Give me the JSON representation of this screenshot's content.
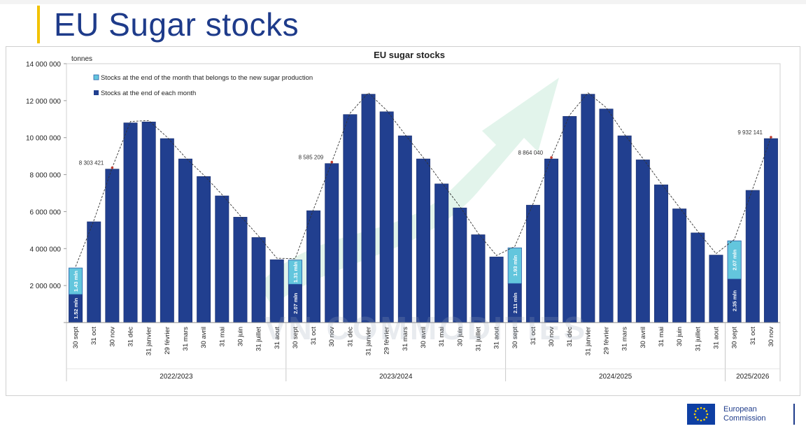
{
  "page": {
    "title": "EU Sugar stocks"
  },
  "footer": {
    "logo_line1": "European",
    "logo_line2": "Commission"
  },
  "watermark": "VN COMMODITIES",
  "colors": {
    "bar_dark": "#213f8f",
    "bar_light": "#63c6dd",
    "title": "#1e3b8a",
    "trend_arrow": "#bfe6d2"
  },
  "chart_data": {
    "type": "bar",
    "title": "EU sugar stocks",
    "ylabel": "tonnes",
    "ylim": [
      0,
      14000000
    ],
    "yticks": [
      0,
      2000000,
      4000000,
      6000000,
      8000000,
      10000000,
      12000000,
      14000000
    ],
    "ytick_labels": [
      "",
      "2 000 000",
      "4 000 000",
      "6 000 000",
      "8 000 000",
      "10 000 000",
      "12 000 000",
      "14 000 000"
    ],
    "grid": false,
    "legend_position": "top-left",
    "categories": [
      "30 sept",
      "31 oct",
      "30 nov",
      "31 déc",
      "31 janvier",
      "29 février",
      "31 mars",
      "30 avril",
      "31 mai",
      "30 juin",
      "31 juillet",
      "31 aout",
      "30 sept",
      "31 oct",
      "30 nov",
      "31 déc",
      "31 janvier",
      "29 février",
      "31 mars",
      "30 avril",
      "31 mai",
      "30 juin",
      "31 juillet",
      "31 aout",
      "30 sept",
      "31 oct",
      "30 nov",
      "31 déc",
      "31 janvier",
      "29 février",
      "31 mars",
      "30 avril",
      "31 mai",
      "30 juin",
      "31 juillet",
      "31 aout",
      "30 sept",
      "31 oct",
      "30 nov"
    ],
    "groups": [
      {
        "label": "2022/2023",
        "count": 12
      },
      {
        "label": "2023/2024",
        "count": 12
      },
      {
        "label": "2024/2025",
        "count": 12
      },
      {
        "label": "2025/2026",
        "count": 3
      }
    ],
    "series": [
      {
        "name": "Stocks at the end of each month",
        "values": [
          1520000,
          5450000,
          8300000,
          10800000,
          10850000,
          9950000,
          8850000,
          7900000,
          6850000,
          5700000,
          4600000,
          3400000,
          2070000,
          6050000,
          8600000,
          11250000,
          12350000,
          11400000,
          10100000,
          8850000,
          7500000,
          6200000,
          4750000,
          3550000,
          2110000,
          6350000,
          8850000,
          11150000,
          12350000,
          11550000,
          10100000,
          8800000,
          7450000,
          6150000,
          4850000,
          3650000,
          2350000,
          7150000,
          9950000
        ]
      },
      {
        "name": "Stocks at the end of the month that belongs to the new sugar production",
        "values": [
          1430000,
          null,
          null,
          null,
          null,
          null,
          null,
          null,
          null,
          null,
          null,
          null,
          1310000,
          null,
          null,
          null,
          null,
          null,
          null,
          null,
          null,
          null,
          null,
          null,
          1930000,
          null,
          null,
          null,
          null,
          null,
          null,
          null,
          null,
          null,
          null,
          null,
          2070000,
          null,
          null
        ]
      }
    ],
    "bar_labels": [
      {
        "index": 0,
        "dark": "1.52 mln",
        "light": "1.43 mln"
      },
      {
        "index": 12,
        "dark": "2.07 mln",
        "light": "1.31 mln"
      },
      {
        "index": 24,
        "dark": "2.11 mln",
        "light": "1.93 mln"
      },
      {
        "index": 36,
        "dark": "2.35 mln",
        "light": "2.07 mln"
      }
    ],
    "annotations": [
      {
        "index": 2,
        "text": "8 303 421"
      },
      {
        "index": 14,
        "text": "8 585 209"
      },
      {
        "index": 26,
        "text": "8 864 040"
      },
      {
        "index": 38,
        "text": "9 932 141"
      }
    ]
  }
}
